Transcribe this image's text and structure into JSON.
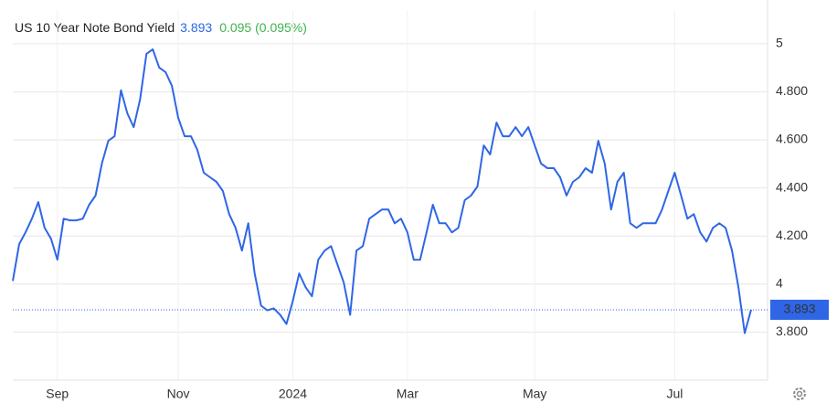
{
  "chart_data": {
    "type": "line",
    "title": "US 10 Year Note Bond Yield",
    "last_value": 3.893,
    "change": "0.095 (0.095%)",
    "categories": [
      null,
      null,
      null,
      null,
      null,
      null,
      null,
      "Sep",
      null,
      null,
      null,
      null,
      null,
      null,
      null,
      null,
      null,
      null,
      null,
      null,
      null,
      null,
      null,
      null,
      null,
      null,
      "Nov",
      null,
      null,
      null,
      null,
      null,
      null,
      null,
      null,
      null,
      null,
      null,
      null,
      null,
      null,
      null,
      null,
      null,
      "2024",
      null,
      null,
      null,
      null,
      null,
      null,
      null,
      null,
      null,
      null,
      null,
      null,
      null,
      null,
      null,
      null,
      null,
      "Mar",
      null,
      null,
      null,
      null,
      null,
      null,
      null,
      null,
      null,
      null,
      null,
      null,
      null,
      null,
      null,
      null,
      null,
      null,
      null,
      "May",
      null,
      null,
      null,
      null,
      null,
      null,
      null,
      null,
      null,
      null,
      null,
      null,
      null,
      null,
      null,
      null,
      null,
      null,
      null,
      null,
      null,
      "Jul",
      null,
      null,
      null,
      null,
      null,
      null,
      null,
      null,
      null,
      null,
      null,
      null
    ],
    "values": [
      4.013,
      4.166,
      4.215,
      4.272,
      4.341,
      4.234,
      4.189,
      4.101,
      4.272,
      4.265,
      4.265,
      4.272,
      4.33,
      4.368,
      4.501,
      4.596,
      4.615,
      4.806,
      4.71,
      4.653,
      4.768,
      4.958,
      4.977,
      4.901,
      4.882,
      4.825,
      4.691,
      4.615,
      4.615,
      4.558,
      4.463,
      4.444,
      4.425,
      4.387,
      4.291,
      4.234,
      4.139,
      4.253,
      4.044,
      3.91,
      3.891,
      3.899,
      3.872,
      3.834,
      3.93,
      4.044,
      3.987,
      3.949,
      4.101,
      4.139,
      4.158,
      4.082,
      4.006,
      3.872,
      4.139,
      4.158,
      4.272,
      4.291,
      4.31,
      4.31,
      4.253,
      4.272,
      4.215,
      4.101,
      4.101,
      4.215,
      4.33,
      4.253,
      4.253,
      4.215,
      4.234,
      4.349,
      4.368,
      4.406,
      4.577,
      4.539,
      4.672,
      4.615,
      4.615,
      4.653,
      4.615,
      4.653,
      4.577,
      4.501,
      4.482,
      4.482,
      4.444,
      4.368,
      4.425,
      4.444,
      4.482,
      4.463,
      4.596,
      4.501,
      4.31,
      4.425,
      4.463,
      4.253,
      4.234,
      4.253,
      4.253,
      4.253,
      4.31,
      4.387,
      4.463,
      4.368,
      4.272,
      4.291,
      4.215,
      4.177,
      4.234,
      4.253,
      4.234,
      4.139,
      3.987,
      3.796,
      3.893
    ],
    "color": "#2f66e6",
    "ylim": [
      3.6,
      5.14
    ],
    "yticks": [
      {
        "value": 3.8,
        "label": "3.800"
      },
      4,
      {
        "value": 4.2,
        "label": "4.200"
      },
      {
        "value": 4.4,
        "label": "4.400"
      },
      {
        "value": 4.6,
        "label": "4.600"
      },
      {
        "value": 4.8,
        "label": "4.800"
      },
      5
    ],
    "grid": true
  }
}
